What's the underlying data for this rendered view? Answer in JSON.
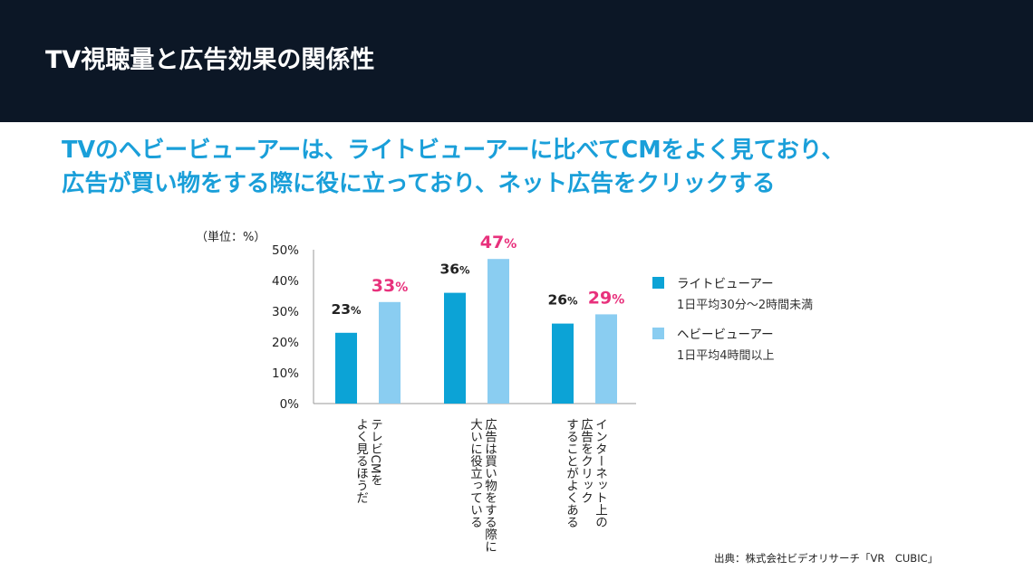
{
  "header": {
    "title": "TV視聴量と広告効果の関係性"
  },
  "subtitle": {
    "line1": "TVのヘビービューアーは、ライトビューアーに比べてCMをよく見ており、",
    "line2": "広告が買い物をする際に役に立っており、ネット広告をクリックする"
  },
  "source": "出典：株式会社ビデオリサーチ「VR　CUBIC」",
  "colors": {
    "light": "#0ca3d6",
    "heavy": "#8acdf1",
    "highlight": "#e8317c",
    "header_bg": "#0c1726",
    "subtitle": "#1a9fd9"
  },
  "chart_data": {
    "type": "bar",
    "unit_label": "（単位：%）",
    "ylim": [
      0,
      50
    ],
    "y_ticks": [
      "0%",
      "10%",
      "20%",
      "30%",
      "40%",
      "50%"
    ],
    "categories": [
      [
        "テレビCMを",
        "よく見るほうだ"
      ],
      [
        "広告は買い物をする際に",
        "大いに役立っている"
      ],
      [
        "インターネット上の",
        "広告をクリック",
        "することがよくある"
      ]
    ],
    "series": [
      {
        "name": "ライトビューアー",
        "note": "1日平均30分〜2時間未満",
        "values": [
          23,
          36,
          26
        ]
      },
      {
        "name": "ヘビービューアー",
        "note": "1日平均4時間以上",
        "values": [
          33,
          47,
          29
        ]
      }
    ],
    "grid": false,
    "legend_position": "right"
  }
}
